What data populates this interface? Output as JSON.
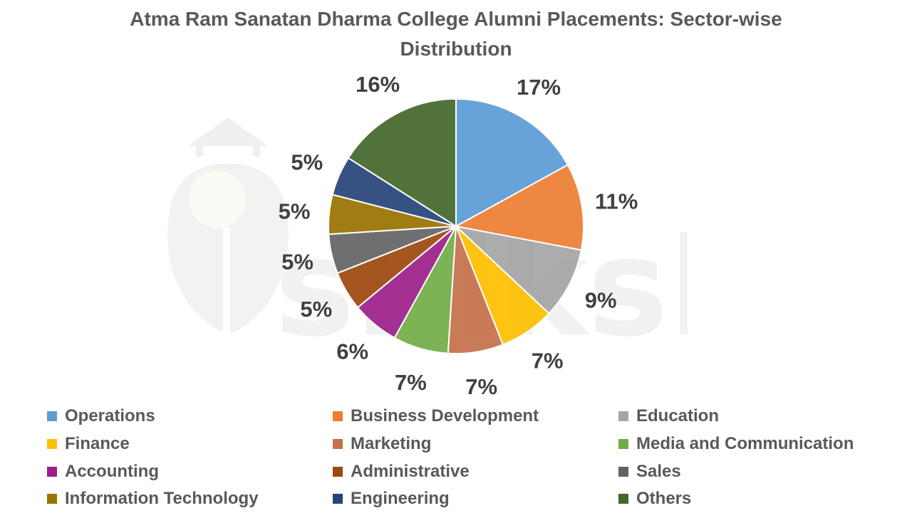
{
  "chart_data": {
    "type": "pie",
    "title_lines": [
      "Atma Ram Sanatan Dharma College Alumni Placements: Sector-wise",
      "Distribution"
    ],
    "legend_position": "bottom",
    "slices": [
      {
        "label": "Operations",
        "value": 17,
        "display": "17%",
        "color": "#5b9bd5"
      },
      {
        "label": "Business Development",
        "value": 11,
        "display": "11%",
        "color": "#ed7d31"
      },
      {
        "label": "Education",
        "value": 9,
        "display": "9%",
        "color": "#a5a5a5"
      },
      {
        "label": "Finance",
        "value": 7,
        "display": "7%",
        "color": "#ffc000"
      },
      {
        "label": "Marketing",
        "value": 7,
        "display": "7%",
        "color": "#c5704a"
      },
      {
        "label": "Media and Communication",
        "value": 7,
        "display": "7%",
        "color": "#70ad47"
      },
      {
        "label": "Accounting",
        "value": 6,
        "display": "6%",
        "color": "#9e1f8c"
      },
      {
        "label": "Administrative",
        "value": 5,
        "display": "5%",
        "color": "#9e480e"
      },
      {
        "label": "Sales",
        "value": 5,
        "display": "5%",
        "color": "#636363"
      },
      {
        "label": "Information Technology",
        "value": 5,
        "display": "5%",
        "color": "#997300"
      },
      {
        "label": "Engineering",
        "value": 5,
        "display": "5%",
        "color": "#264478"
      },
      {
        "label": "Others",
        "value": 16,
        "display": "16%",
        "color": "#43682b"
      }
    ]
  }
}
